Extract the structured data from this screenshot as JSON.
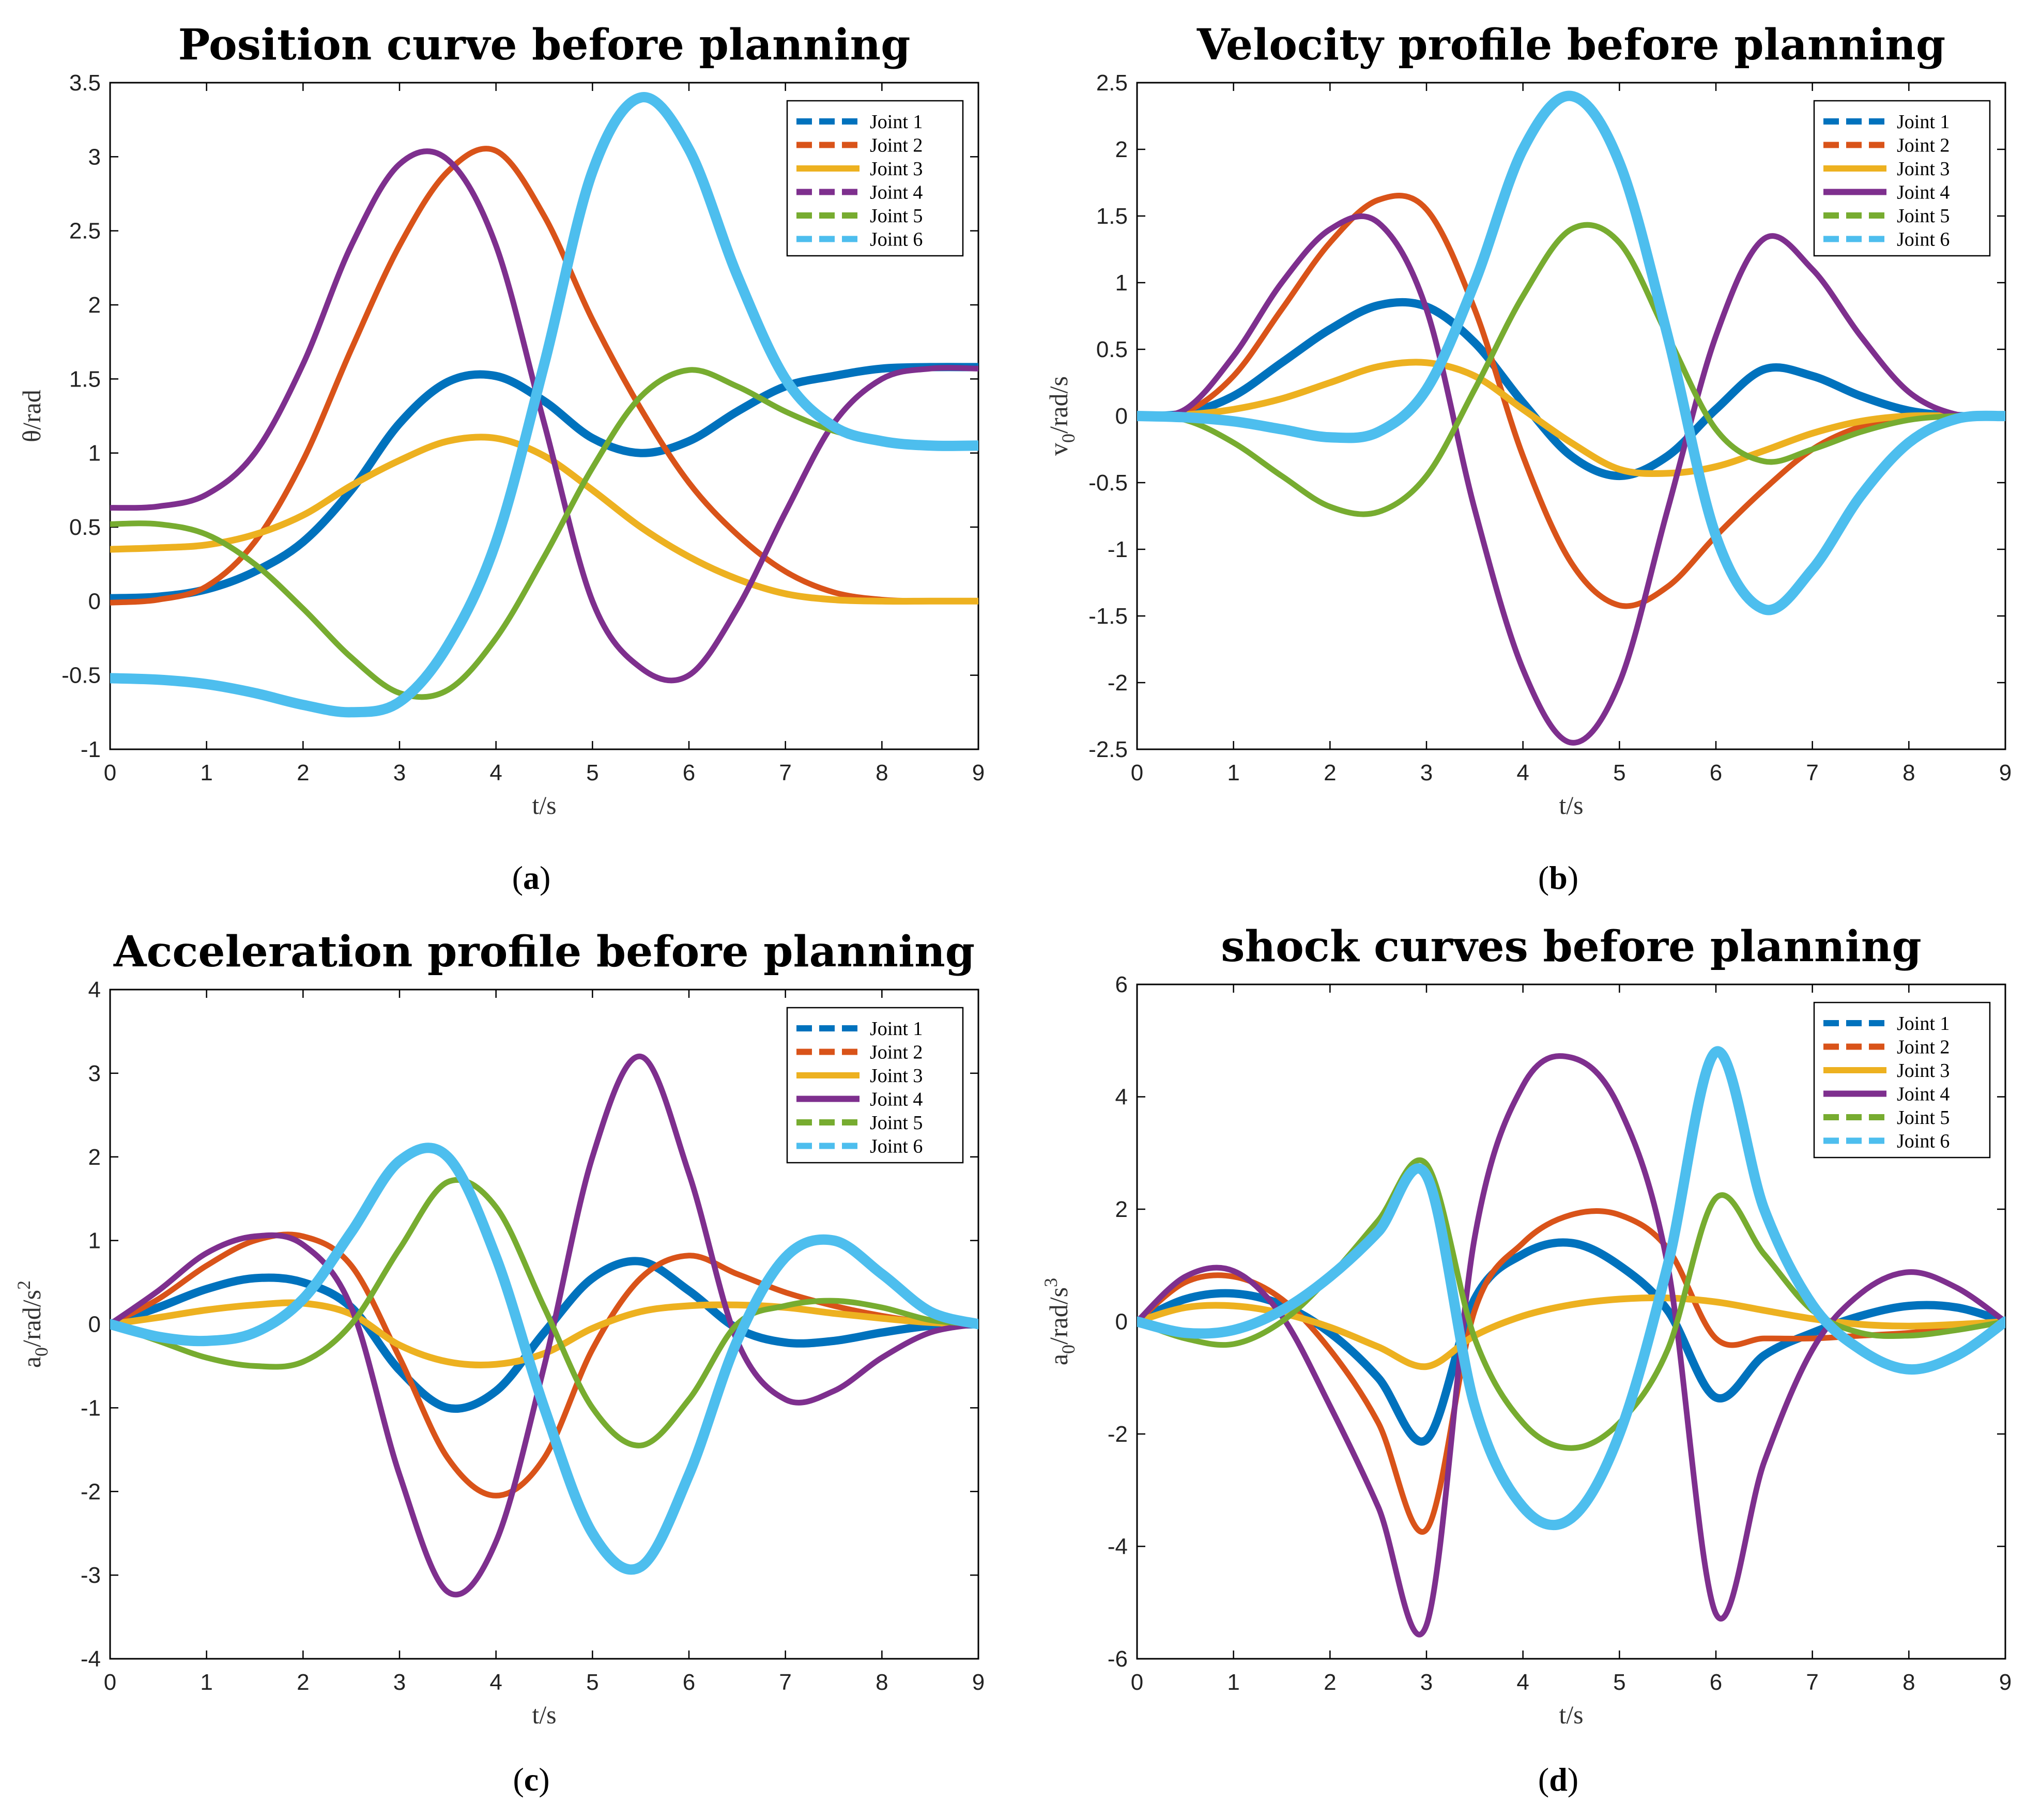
{
  "colors": {
    "Joint 1": "#0072BD",
    "Joint 2": "#D95319",
    "Joint 3": "#EDB120",
    "Joint 4": "#7E2F8E",
    "Joint 5": "#77AC30",
    "Joint 6": "#4DBEEE"
  },
  "chart_data": [
    {
      "type": "line",
      "caption": "(a)",
      "title": "Position curve before planning",
      "xlabel": "t/s",
      "ylabel": "θ/rad",
      "xlim": [
        0,
        9
      ],
      "ylim": [
        -1,
        3.5
      ],
      "xticks": [
        0,
        1,
        2,
        3,
        4,
        5,
        6,
        7,
        8,
        9
      ],
      "yticks": [
        -1,
        -0.5,
        0,
        0.5,
        1,
        1.5,
        2,
        2.5,
        3,
        3.5
      ],
      "x": [
        0,
        0.5,
        1,
        1.5,
        2,
        2.5,
        3,
        3.5,
        4,
        4.5,
        5,
        5.5,
        6,
        6.5,
        7,
        7.5,
        8,
        8.5,
        9
      ],
      "legend": "top-right",
      "series": [
        {
          "name": "Joint 1",
          "style": "dash",
          "values": [
            0.02,
            0.03,
            0.08,
            0.2,
            0.4,
            0.75,
            1.2,
            1.48,
            1.52,
            1.35,
            1.1,
            1.0,
            1.08,
            1.28,
            1.45,
            1.52,
            1.57,
            1.58,
            1.58
          ]
        },
        {
          "name": "Joint 2",
          "style": "dot",
          "values": [
            -0.01,
            0.01,
            0.1,
            0.4,
            0.95,
            1.7,
            2.4,
            2.9,
            3.04,
            2.6,
            1.9,
            1.3,
            0.8,
            0.45,
            0.2,
            0.06,
            0.01,
            0.0,
            0.0
          ]
        },
        {
          "name": "Joint 3",
          "style": "solid",
          "values": [
            0.35,
            0.36,
            0.38,
            0.45,
            0.58,
            0.78,
            0.95,
            1.08,
            1.1,
            0.98,
            0.75,
            0.5,
            0.3,
            0.15,
            0.05,
            0.01,
            0.0,
            0.0,
            0.0
          ]
        },
        {
          "name": "Joint 4",
          "style": "dashdot",
          "values": [
            0.63,
            0.64,
            0.72,
            1.0,
            1.6,
            2.4,
            2.95,
            2.98,
            2.4,
            1.2,
            0.0,
            -0.45,
            -0.5,
            -0.05,
            0.6,
            1.2,
            1.5,
            1.57,
            1.57
          ]
        },
        {
          "name": "Joint 5",
          "style": "dot",
          "values": [
            0.52,
            0.52,
            0.45,
            0.25,
            -0.05,
            -0.38,
            -0.62,
            -0.6,
            -0.25,
            0.3,
            0.9,
            1.38,
            1.56,
            1.45,
            1.28,
            1.15,
            1.08,
            1.05,
            1.05
          ]
        },
        {
          "name": "Joint 6",
          "style": "dash",
          "values": [
            -0.52,
            -0.53,
            -0.56,
            -0.62,
            -0.7,
            -0.75,
            -0.68,
            -0.3,
            0.4,
            1.6,
            2.9,
            3.4,
            3.05,
            2.2,
            1.5,
            1.18,
            1.08,
            1.05,
            1.05
          ]
        }
      ]
    },
    {
      "type": "line",
      "caption": "(b)",
      "title": "Velocity profile before planning",
      "xlabel": "t/s",
      "ylabel": "v0/rad/s",
      "ylabel_base": "v",
      "ylabel_sub": "0",
      "ylabel_rest": "/rad/s",
      "xlim": [
        0,
        9
      ],
      "ylim": [
        -2.5,
        2.5
      ],
      "xticks": [
        0,
        1,
        2,
        3,
        4,
        5,
        6,
        7,
        8,
        9
      ],
      "yticks": [
        -2.5,
        -2,
        -1.5,
        -1,
        -0.5,
        0,
        0.5,
        1,
        1.5,
        2,
        2.5
      ],
      "x": [
        0,
        0.5,
        1,
        1.5,
        2,
        2.5,
        3,
        3.5,
        4,
        4.5,
        5,
        5.5,
        6,
        6.5,
        7,
        7.5,
        8,
        8.5,
        9
      ],
      "legend": "top-right",
      "series": [
        {
          "name": "Joint 1",
          "style": "dash",
          "values": [
            0,
            0.02,
            0.15,
            0.4,
            0.65,
            0.83,
            0.82,
            0.55,
            0.1,
            -0.3,
            -0.45,
            -0.3,
            0.05,
            0.35,
            0.3,
            0.15,
            0.04,
            0.0,
            0.0
          ]
        },
        {
          "name": "Joint 2",
          "style": "dot",
          "values": [
            0,
            0.03,
            0.3,
            0.8,
            1.3,
            1.62,
            1.55,
            0.8,
            -0.3,
            -1.1,
            -1.42,
            -1.28,
            -0.9,
            -0.55,
            -0.25,
            -0.08,
            0.0,
            0.0,
            0.0
          ]
        },
        {
          "name": "Joint 3",
          "style": "solid",
          "values": [
            0,
            0.01,
            0.05,
            0.13,
            0.25,
            0.37,
            0.4,
            0.3,
            0.05,
            -0.2,
            -0.4,
            -0.43,
            -0.38,
            -0.26,
            -0.13,
            -0.04,
            0.0,
            0.0,
            0.0
          ]
        },
        {
          "name": "Joint 4",
          "style": "solid",
          "values": [
            0,
            0.05,
            0.45,
            1.0,
            1.4,
            1.45,
            0.8,
            -0.7,
            -1.9,
            -2.45,
            -2.0,
            -0.7,
            0.6,
            1.33,
            1.1,
            0.6,
            0.18,
            0.01,
            0.0
          ]
        },
        {
          "name": "Joint 5",
          "style": "dot",
          "values": [
            0,
            -0.03,
            -0.2,
            -0.45,
            -0.68,
            -0.72,
            -0.45,
            0.2,
            0.9,
            1.4,
            1.3,
            0.6,
            -0.1,
            -0.34,
            -0.25,
            -0.12,
            -0.03,
            0.0,
            0.0
          ]
        },
        {
          "name": "Joint 6",
          "style": "dash",
          "values": [
            0,
            -0.01,
            -0.04,
            -0.1,
            -0.16,
            -0.12,
            0.2,
            1.0,
            2.0,
            2.4,
            1.9,
            0.6,
            -0.9,
            -1.45,
            -1.15,
            -0.6,
            -0.2,
            -0.02,
            0.0
          ]
        }
      ]
    },
    {
      "type": "line",
      "caption": "(c)",
      "title": "Acceleration profile before planning",
      "xlabel": "t/s",
      "ylabel": "a0/rad/s2",
      "ylabel_base": "a",
      "ylabel_sub": "0",
      "ylabel_rest": "/rad/s",
      "ylabel_sup": "2",
      "xlim": [
        0,
        9
      ],
      "ylim": [
        -4,
        4
      ],
      "xticks": [
        0,
        1,
        2,
        3,
        4,
        5,
        6,
        7,
        8,
        9
      ],
      "yticks": [
        -4,
        -3,
        -2,
        -1,
        0,
        1,
        2,
        3,
        4
      ],
      "x": [
        0,
        0.5,
        1,
        1.5,
        2,
        2.5,
        3,
        3.5,
        4,
        4.5,
        5,
        5.5,
        6,
        6.5,
        7,
        7.5,
        8,
        8.5,
        9
      ],
      "legend": "top-right",
      "series": [
        {
          "name": "Joint 1",
          "style": "dash",
          "values": [
            0,
            0.2,
            0.42,
            0.55,
            0.5,
            0.2,
            -0.55,
            -1.0,
            -0.8,
            -0.1,
            0.55,
            0.75,
            0.4,
            -0.05,
            -0.22,
            -0.2,
            -0.1,
            -0.02,
            0.0
          ]
        },
        {
          "name": "Joint 2",
          "style": "dot",
          "values": [
            0,
            0.3,
            0.7,
            1.0,
            1.05,
            0.7,
            -0.4,
            -1.6,
            -2.05,
            -1.6,
            -0.3,
            0.55,
            0.82,
            0.6,
            0.38,
            0.22,
            0.1,
            0.02,
            0.0
          ]
        },
        {
          "name": "Joint 3",
          "style": "solid",
          "values": [
            0,
            0.08,
            0.17,
            0.23,
            0.25,
            0.12,
            -0.25,
            -0.45,
            -0.48,
            -0.35,
            -0.05,
            0.15,
            0.22,
            0.23,
            0.2,
            0.13,
            0.07,
            0.02,
            0.0
          ]
        },
        {
          "name": "Joint 4",
          "style": "solid",
          "values": [
            0,
            0.4,
            0.85,
            1.05,
            0.95,
            0.2,
            -1.8,
            -3.2,
            -2.6,
            -0.5,
            2.0,
            3.2,
            1.8,
            -0.2,
            -0.9,
            -0.8,
            -0.4,
            -0.1,
            0.0
          ]
        },
        {
          "name": "Joint 5",
          "style": "dot",
          "values": [
            0,
            -0.2,
            -0.4,
            -0.5,
            -0.45,
            0.0,
            0.9,
            1.7,
            1.4,
            0.2,
            -1.0,
            -1.45,
            -0.9,
            0.0,
            0.22,
            0.28,
            0.2,
            0.05,
            0.0
          ]
        },
        {
          "name": "Joint 6",
          "style": "dash",
          "values": [
            0,
            -0.15,
            -0.2,
            -0.1,
            0.3,
            1.1,
            1.95,
            2.0,
            0.8,
            -1.0,
            -2.5,
            -2.9,
            -1.8,
            -0.2,
            0.8,
            1.0,
            0.6,
            0.15,
            0.0
          ]
        }
      ]
    },
    {
      "type": "line",
      "caption": "(d)",
      "title": "shock curves before planning",
      "xlabel": "t/s",
      "ylabel": "a0/rad/s3",
      "ylabel_base": "a",
      "ylabel_sub": "0",
      "ylabel_rest": "/rad/s",
      "ylabel_sup": "3",
      "xlim": [
        0,
        9
      ],
      "ylim": [
        -6,
        6
      ],
      "xticks": [
        0,
        1,
        2,
        3,
        4,
        5,
        6,
        7,
        8,
        9
      ],
      "yticks": [
        -6,
        -4,
        -2,
        0,
        2,
        4,
        6
      ],
      "x": [
        0,
        0.5,
        1,
        1.5,
        2,
        2.5,
        3,
        3.5,
        4,
        4.5,
        5,
        5.5,
        6,
        6.5,
        7,
        7.5,
        8,
        8.5,
        9
      ],
      "legend": "top-right",
      "series": [
        {
          "name": "Joint 1",
          "style": "dash",
          "x": [
            0,
            0.5,
            1,
            1.5,
            2,
            2.5,
            3,
            3.5,
            4,
            4.5,
            5,
            5.5,
            6,
            6.5,
            7,
            7.5,
            8,
            8.5,
            9
          ],
          "values": [
            0,
            0.4,
            0.5,
            0.3,
            -0.2,
            -1.0,
            -2.1,
            0.4,
            1.2,
            1.4,
            1.0,
            0.2,
            -1.35,
            -0.6,
            -0.2,
            0.1,
            0.28,
            0.25,
            0.0
          ]
        },
        {
          "name": "Joint 2",
          "style": "dot",
          "x": [
            0,
            0.5,
            1,
            1.5,
            2,
            2.5,
            3,
            3.5,
            4,
            4.5,
            5,
            5.5,
            6,
            6.5,
            7,
            7.5,
            8,
            8.5,
            9
          ],
          "values": [
            0,
            0.7,
            0.8,
            0.4,
            -0.5,
            -1.8,
            -3.7,
            0.2,
            1.4,
            1.9,
            1.9,
            1.3,
            -0.3,
            -0.3,
            -0.3,
            -0.25,
            -0.2,
            -0.1,
            0.0
          ]
        },
        {
          "name": "Joint 3",
          "style": "solid",
          "x": [
            0,
            0.5,
            1,
            1.5,
            2,
            2.5,
            3,
            3.5,
            4,
            4.5,
            5,
            5.5,
            6,
            6.5,
            7,
            7.5,
            8,
            8.5,
            9
          ],
          "values": [
            0,
            0.25,
            0.28,
            0.15,
            -0.1,
            -0.45,
            -0.8,
            -0.25,
            0.1,
            0.3,
            0.4,
            0.42,
            0.35,
            0.2,
            0.05,
            -0.05,
            -0.08,
            -0.05,
            0.0
          ]
        },
        {
          "name": "Joint 4",
          "style": "solid",
          "x": [
            0,
            0.5,
            1,
            1.5,
            2,
            2.5,
            3,
            3.5,
            4,
            4.5,
            5,
            5.5,
            6,
            6.5,
            7,
            7.5,
            8,
            8.5,
            9
          ],
          "values": [
            0,
            0.8,
            0.9,
            0.1,
            -1.5,
            -3.3,
            -5.4,
            1.5,
            4.2,
            4.7,
            3.8,
            1.0,
            -5.2,
            -2.5,
            -0.5,
            0.5,
            0.88,
            0.6,
            0.0
          ]
        },
        {
          "name": "Joint 5",
          "style": "dot",
          "x": [
            0,
            0.5,
            1,
            1.5,
            2,
            2.5,
            3,
            3.5,
            4,
            4.5,
            5,
            5.5,
            6,
            6.5,
            7,
            7.5,
            8,
            8.5,
            9
          ],
          "values": [
            0,
            -0.3,
            -0.4,
            0.0,
            0.8,
            1.8,
            2.8,
            -0.3,
            -1.8,
            -2.25,
            -1.8,
            -0.5,
            2.2,
            1.2,
            0.2,
            -0.2,
            -0.25,
            -0.15,
            0.0
          ]
        },
        {
          "name": "Joint 6",
          "style": "dash",
          "x": [
            0,
            0.5,
            1,
            1.5,
            2,
            2.5,
            3,
            3.5,
            4,
            4.5,
            5,
            5.5,
            6,
            6.5,
            7,
            7.5,
            8,
            8.5,
            9
          ],
          "values": [
            0,
            -0.2,
            -0.15,
            0.2,
            0.8,
            1.6,
            2.6,
            -1.5,
            -3.3,
            -3.5,
            -2.0,
            1.0,
            4.8,
            2.0,
            0.3,
            -0.5,
            -0.85,
            -0.6,
            0.0
          ]
        }
      ]
    }
  ]
}
